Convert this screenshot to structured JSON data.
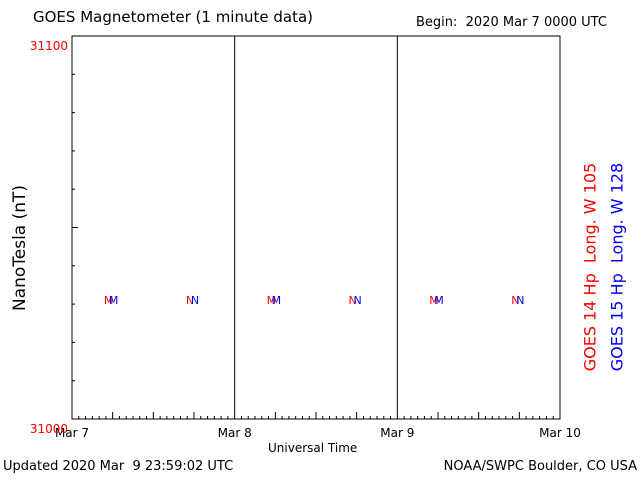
{
  "header": {
    "title": "GOES Magnetometer (1 minute data)",
    "begin": "Begin:  2020 Mar 7 0000 UTC"
  },
  "footer": {
    "updated": "Updated 2020 Mar  9 23:59:02 UTC",
    "credit": "NOAA/SWPC Boulder, CO USA"
  },
  "chart_data": {
    "type": "line",
    "title": "GOES Magnetometer (1 minute data)",
    "xlabel": "Universal Time",
    "ylabel": "NanoTesla (nT)",
    "ylim": [
      31000,
      31100
    ],
    "y_tick_labels": [
      "31100",
      "31000"
    ],
    "y_tick_color": "#ff0000",
    "x_tick_labels": [
      "Mar 7",
      "Mar 8",
      "Mar 9",
      "Mar 10"
    ],
    "x_range_days": [
      0,
      3
    ],
    "grid": "vertical day dividers",
    "series": [
      {
        "name": "GOES 14 Hp  Long. W 105",
        "color": "#ff0000",
        "values": []
      },
      {
        "name": "GOES 15 Hp  Long. W 128",
        "color": "#0000ff",
        "values": []
      }
    ],
    "markers": [
      {
        "label": "M",
        "day": 0.25,
        "colors": [
          "#ff0000",
          "#0000ff"
        ]
      },
      {
        "label": "N",
        "day": 0.75,
        "colors": [
          "#ff0000",
          "#0000ff"
        ]
      },
      {
        "label": "M",
        "day": 1.25,
        "colors": [
          "#ff0000",
          "#0000ff"
        ]
      },
      {
        "label": "N",
        "day": 1.75,
        "colors": [
          "#ff0000",
          "#0000ff"
        ]
      },
      {
        "label": "M",
        "day": 2.25,
        "colors": [
          "#ff0000",
          "#0000ff"
        ]
      },
      {
        "label": "N",
        "day": 2.75,
        "colors": [
          "#ff0000",
          "#0000ff"
        ]
      }
    ]
  }
}
